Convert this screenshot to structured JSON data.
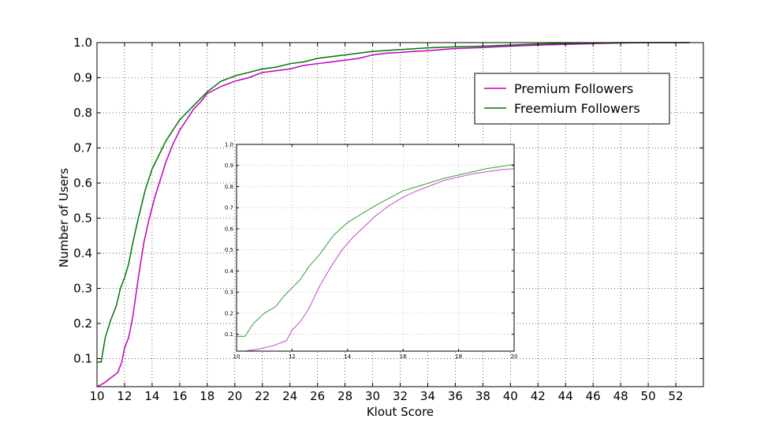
{
  "chart_data": [
    {
      "id": "main",
      "type": "line",
      "title": "",
      "xlabel": "Klout Score",
      "ylabel": "Number of Users",
      "xlim": [
        10,
        54
      ],
      "ylim": [
        0.02,
        1.0
      ],
      "xticks": [
        10,
        12,
        14,
        16,
        18,
        20,
        22,
        24,
        26,
        28,
        30,
        32,
        34,
        36,
        38,
        40,
        42,
        44,
        46,
        48,
        50,
        52
      ],
      "yticks": [
        0.1,
        0.2,
        0.3,
        0.4,
        0.5,
        0.6,
        0.7,
        0.8,
        0.9,
        1.0
      ],
      "ytick_labels": [
        "0.1",
        "0.2",
        "0.3",
        "0.4",
        "0.5",
        "0.6",
        "0.7",
        "0.8",
        "0.9",
        "1.0"
      ],
      "grid": true,
      "legend_position": "top-right",
      "series": [
        {
          "name": "Premium  Followers",
          "color": "#bf00bf",
          "x": [
            10,
            10.5,
            11,
            11.5,
            11.8,
            12,
            12.3,
            12.6,
            13,
            13.4,
            13.8,
            14.2,
            14.6,
            15,
            15.5,
            16,
            16.5,
            17,
            17.5,
            18,
            19,
            20,
            21,
            22,
            23,
            24,
            25,
            26,
            27,
            28,
            29,
            30,
            31,
            32,
            33,
            34,
            35,
            36,
            38,
            40,
            42,
            44,
            46,
            48,
            50,
            53
          ],
          "y": [
            0.02,
            0.03,
            0.045,
            0.06,
            0.09,
            0.13,
            0.16,
            0.22,
            0.33,
            0.43,
            0.5,
            0.56,
            0.61,
            0.66,
            0.71,
            0.75,
            0.78,
            0.81,
            0.83,
            0.855,
            0.875,
            0.89,
            0.9,
            0.915,
            0.92,
            0.925,
            0.935,
            0.94,
            0.945,
            0.95,
            0.955,
            0.965,
            0.97,
            0.972,
            0.975,
            0.977,
            0.98,
            0.983,
            0.986,
            0.99,
            0.993,
            0.995,
            0.997,
            0.999,
            1.0,
            1.0
          ]
        },
        {
          "name": "Freemium  Followers",
          "color": "#007700",
          "x": [
            10,
            10.3,
            10.6,
            11,
            11.4,
            11.7,
            12,
            12.3,
            12.6,
            13,
            13.5,
            14,
            14.5,
            15,
            15.5,
            16,
            16.5,
            17,
            17.5,
            18,
            19,
            20,
            21,
            22,
            23,
            24,
            25,
            26,
            27,
            28,
            29,
            30,
            32,
            34,
            36,
            38,
            40,
            42,
            44,
            46,
            48,
            50,
            53
          ],
          "y": [
            0.09,
            0.09,
            0.16,
            0.21,
            0.25,
            0.3,
            0.33,
            0.37,
            0.43,
            0.5,
            0.58,
            0.64,
            0.68,
            0.72,
            0.75,
            0.78,
            0.8,
            0.82,
            0.84,
            0.86,
            0.89,
            0.905,
            0.915,
            0.925,
            0.93,
            0.94,
            0.945,
            0.955,
            0.96,
            0.965,
            0.97,
            0.975,
            0.98,
            0.985,
            0.988,
            0.99,
            0.993,
            0.996,
            0.998,
            0.999,
            1.0,
            1.0,
            1.0
          ]
        }
      ]
    },
    {
      "id": "inset",
      "type": "line",
      "title": "",
      "xlabel": "",
      "ylabel": "",
      "xlim": [
        10,
        20
      ],
      "ylim": [
        0.02,
        1.0
      ],
      "xticks": [
        10,
        12,
        14,
        16,
        18,
        20
      ],
      "yticks": [
        0.1,
        0.2,
        0.3,
        0.4,
        0.5,
        0.6,
        0.7,
        0.8,
        0.9,
        1.0
      ],
      "ytick_labels": [
        "0.1",
        "0.2",
        "0.3",
        "0.4",
        "0.5",
        "0.6",
        "0.7",
        "0.8",
        "0.9",
        "1.0"
      ],
      "grid": true,
      "series": [
        {
          "name": "Premium  Followers",
          "color": "#cc44cc",
          "x": [
            10.3,
            10.8,
            11.3,
            11.8,
            12,
            12.3,
            12.6,
            13,
            13.4,
            13.8,
            14.2,
            14.6,
            15,
            15.5,
            16,
            16.5,
            17,
            17.5,
            18,
            18.5,
            19,
            19.5,
            20
          ],
          "y": [
            0.02,
            0.03,
            0.045,
            0.07,
            0.12,
            0.16,
            0.22,
            0.33,
            0.42,
            0.5,
            0.56,
            0.61,
            0.66,
            0.71,
            0.75,
            0.78,
            0.805,
            0.83,
            0.845,
            0.86,
            0.87,
            0.88,
            0.885
          ]
        },
        {
          "name": "Freemium  Followers",
          "color": "#33a033",
          "x": [
            10,
            10.3,
            10.6,
            11,
            11.4,
            11.7,
            12,
            12.3,
            12.6,
            13,
            13.5,
            14,
            14.5,
            15,
            15.5,
            16,
            16.5,
            17,
            17.5,
            18,
            18.5,
            19,
            19.5,
            20
          ],
          "y": [
            0.09,
            0.09,
            0.15,
            0.2,
            0.23,
            0.28,
            0.32,
            0.36,
            0.42,
            0.48,
            0.57,
            0.63,
            0.67,
            0.71,
            0.745,
            0.78,
            0.8,
            0.82,
            0.84,
            0.855,
            0.87,
            0.885,
            0.895,
            0.905
          ]
        }
      ]
    }
  ]
}
